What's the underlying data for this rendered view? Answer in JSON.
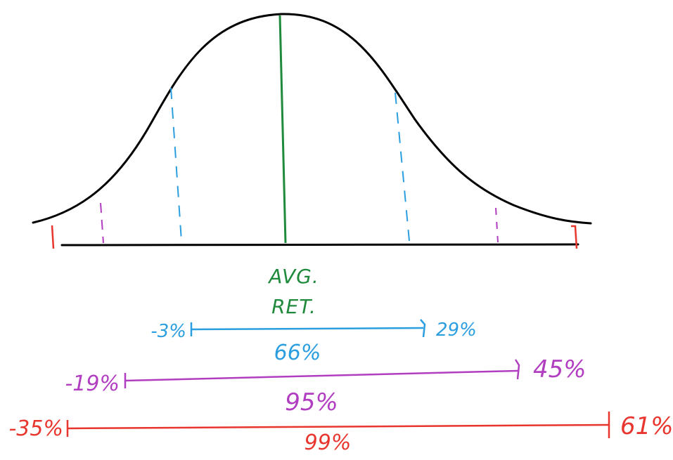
{
  "avg_label": {
    "line1": "AVG.",
    "line2": "RET."
  },
  "colors": {
    "curve": "#000000",
    "mean": "#1f8a3c",
    "one_sd": "#2b9ee0",
    "two_sd": "#b13ec0",
    "three_sd": "#e8362e"
  },
  "ranges": [
    {
      "low": "-3%",
      "high": "29%",
      "coverage": "66%",
      "color_key": "one_sd"
    },
    {
      "low": "-19%",
      "high": "45%",
      "coverage": "95%",
      "color_key": "two_sd"
    },
    {
      "low": "-35%",
      "high": "61%",
      "coverage": "99%",
      "color_key": "three_sd"
    }
  ]
}
